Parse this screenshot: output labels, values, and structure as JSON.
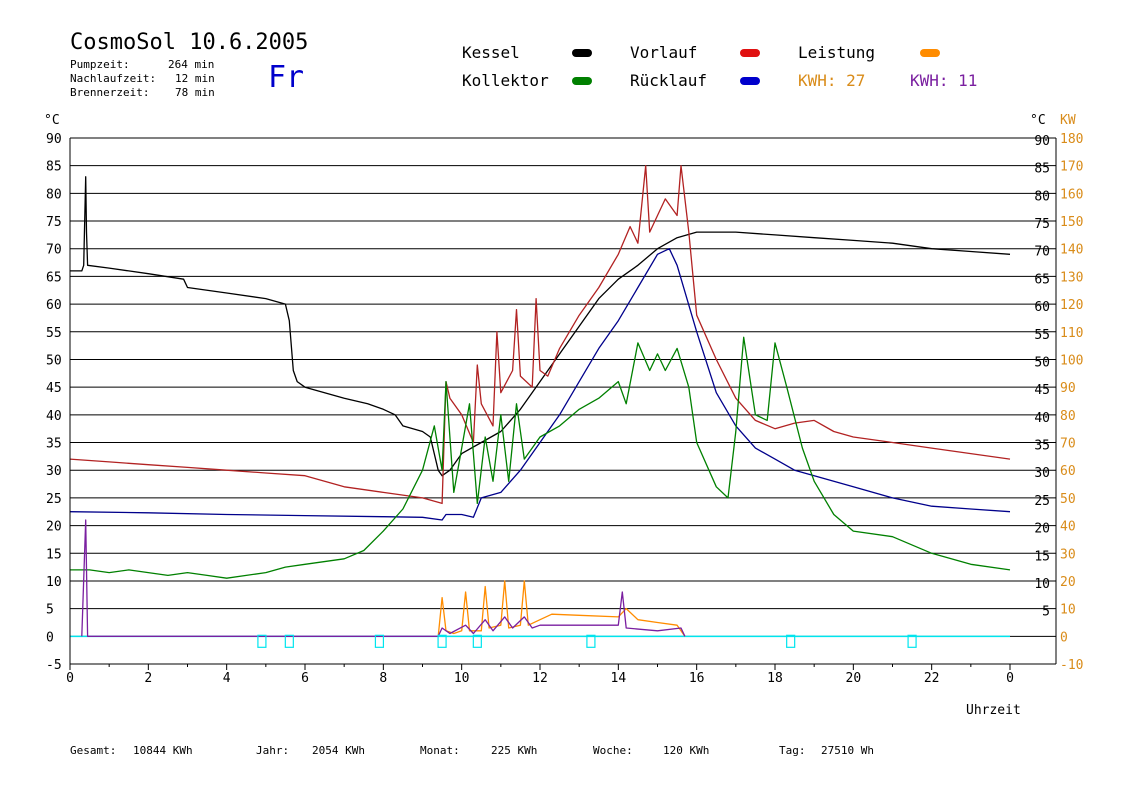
{
  "header": {
    "title": "CosmoSol 10.6.2005",
    "weekday": "Fr",
    "stats": [
      {
        "label": "Pumpzeit:",
        "value": "264 min"
      },
      {
        "label": "Nachlaufzeit:",
        "value": "12 min"
      },
      {
        "label": "Brennerzeit:",
        "value": "78 min"
      }
    ]
  },
  "legend": {
    "items": [
      {
        "label": "Kessel",
        "color": "#000000"
      },
      {
        "label": "Kollektor",
        "color": "#008000"
      },
      {
        "label": "Vorlauf",
        "color": "#e01010"
      },
      {
        "label": "Rücklauf",
        "color": "#0000cc"
      },
      {
        "label": "Leistung",
        "color": "#ff8c00"
      }
    ],
    "kwh": [
      {
        "text": "KWH: 27",
        "color": "#d98c1a"
      },
      {
        "text": "KWH: 11",
        "color": "#7a1fa0"
      }
    ]
  },
  "footer": [
    {
      "label": "Gesamt:",
      "value": "10844 KWh"
    },
    {
      "label": "Jahr:",
      "value": "2054 KWh"
    },
    {
      "label": "Monat:",
      "value": "225 KWh"
    },
    {
      "label": "Woche:",
      "value": "120 KWh"
    },
    {
      "label": "Tag:",
      "value": "27510 Wh"
    }
  ],
  "chart_data": {
    "type": "line",
    "xlabel": "Uhrzeit",
    "ylabel_left": "°C",
    "ylabel_right_temp": "°C",
    "ylabel_right_power": "KW",
    "xlim": [
      0,
      24
    ],
    "ylim": [
      -5,
      90
    ],
    "x_ticks": [
      0,
      2,
      4,
      6,
      8,
      10,
      12,
      14,
      16,
      18,
      20,
      22
    ],
    "x_tick_labels": [
      "0",
      "2",
      "4",
      "6",
      "8",
      "10",
      "12",
      "14",
      "16",
      "18",
      "20",
      "22",
      "0"
    ],
    "y_ticks_left": [
      "-5",
      "0",
      "5",
      "10",
      "15",
      "20",
      "25",
      "30",
      "35",
      "40",
      "45",
      "50",
      "55",
      "60",
      "65",
      "70",
      "75",
      "80",
      "85",
      "90"
    ],
    "y_ticks_right_temp": [
      "5",
      "10",
      "15",
      "20",
      "25",
      "30",
      "35",
      "40",
      "45",
      "50",
      "55",
      "60",
      "65",
      "70",
      "75",
      "80",
      "85",
      "90"
    ],
    "y_ticks_right_power": [
      "-10",
      "0",
      "10",
      "20",
      "30",
      "40",
      "50",
      "60",
      "70",
      "80",
      "90",
      "100",
      "110",
      "120",
      "130",
      "140",
      "150",
      "160",
      "170",
      "180"
    ],
    "grid": "horizontal",
    "series": [
      {
        "name": "Kessel",
        "color": "#000000",
        "points": [
          [
            0,
            66
          ],
          [
            0.3,
            66
          ],
          [
            0.35,
            67
          ],
          [
            0.4,
            83
          ],
          [
            0.42,
            73
          ],
          [
            0.45,
            67
          ],
          [
            1,
            66.5
          ],
          [
            2,
            65.5
          ],
          [
            2.9,
            64.5
          ],
          [
            3,
            63
          ],
          [
            4,
            62
          ],
          [
            5,
            61
          ],
          [
            5.5,
            60
          ],
          [
            5.6,
            57
          ],
          [
            5.7,
            48
          ],
          [
            5.8,
            46
          ],
          [
            6,
            45
          ],
          [
            7,
            43
          ],
          [
            7.6,
            42
          ],
          [
            8,
            41
          ],
          [
            8.3,
            40
          ],
          [
            8.5,
            38
          ],
          [
            9,
            37
          ],
          [
            9.2,
            36
          ],
          [
            9.4,
            30
          ],
          [
            9.5,
            29
          ],
          [
            9.7,
            30
          ],
          [
            10,
            33
          ],
          [
            10.5,
            35
          ],
          [
            11,
            37
          ],
          [
            11.5,
            41
          ],
          [
            12,
            46
          ],
          [
            12.5,
            51
          ],
          [
            13,
            56
          ],
          [
            13.5,
            61
          ],
          [
            14,
            64.5
          ],
          [
            14.5,
            67
          ],
          [
            15,
            70
          ],
          [
            15.5,
            72
          ],
          [
            16,
            73
          ],
          [
            17,
            73
          ],
          [
            18,
            72.5
          ],
          [
            19,
            72
          ],
          [
            20,
            71.5
          ],
          [
            21,
            71
          ],
          [
            22,
            70
          ],
          [
            23,
            69.5
          ],
          [
            24,
            69
          ]
        ]
      },
      {
        "name": "Vorlauf",
        "color": "#b22222",
        "points": [
          [
            0,
            32
          ],
          [
            1,
            31.5
          ],
          [
            2,
            31
          ],
          [
            3,
            30.5
          ],
          [
            4,
            30
          ],
          [
            5,
            29.5
          ],
          [
            6,
            29
          ],
          [
            7,
            27
          ],
          [
            8,
            26
          ],
          [
            9,
            25
          ],
          [
            9.5,
            24
          ],
          [
            9.6,
            46
          ],
          [
            9.7,
            43
          ],
          [
            10,
            40
          ],
          [
            10.3,
            35
          ],
          [
            10.4,
            49
          ],
          [
            10.5,
            42
          ],
          [
            10.8,
            38
          ],
          [
            10.9,
            55
          ],
          [
            11,
            44
          ],
          [
            11.3,
            48
          ],
          [
            11.4,
            59
          ],
          [
            11.5,
            47
          ],
          [
            11.8,
            45
          ],
          [
            11.9,
            61
          ],
          [
            12,
            48
          ],
          [
            12.2,
            47
          ],
          [
            12.5,
            52
          ],
          [
            13,
            58
          ],
          [
            13.5,
            63
          ],
          [
            14,
            69
          ],
          [
            14.3,
            74
          ],
          [
            14.5,
            71
          ],
          [
            14.7,
            85
          ],
          [
            14.8,
            73
          ],
          [
            15,
            76
          ],
          [
            15.2,
            79
          ],
          [
            15.5,
            76
          ],
          [
            15.6,
            85
          ],
          [
            15.8,
            73
          ],
          [
            16,
            58
          ],
          [
            16.5,
            50
          ],
          [
            17,
            43
          ],
          [
            17.5,
            39
          ],
          [
            18,
            37.5
          ],
          [
            18.5,
            38.5
          ],
          [
            19,
            39
          ],
          [
            19.5,
            37
          ],
          [
            20,
            36
          ],
          [
            21,
            35
          ],
          [
            22,
            34
          ],
          [
            23,
            33
          ],
          [
            24,
            32
          ]
        ]
      },
      {
        "name": "Rücklauf",
        "color": "#00008b",
        "points": [
          [
            0,
            22.5
          ],
          [
            2,
            22.3
          ],
          [
            4,
            22
          ],
          [
            6,
            21.8
          ],
          [
            8,
            21.6
          ],
          [
            9,
            21.5
          ],
          [
            9.5,
            21
          ],
          [
            9.6,
            22
          ],
          [
            10,
            22
          ],
          [
            10.3,
            21.5
          ],
          [
            10.5,
            25
          ],
          [
            11,
            26
          ],
          [
            11.5,
            30
          ],
          [
            12,
            35
          ],
          [
            12.5,
            40
          ],
          [
            13,
            46
          ],
          [
            13.5,
            52
          ],
          [
            14,
            57
          ],
          [
            14.5,
            63
          ],
          [
            15,
            69
          ],
          [
            15.3,
            70
          ],
          [
            15.5,
            67
          ],
          [
            16,
            55
          ],
          [
            16.5,
            44
          ],
          [
            17,
            38
          ],
          [
            17.5,
            34
          ],
          [
            18,
            32
          ],
          [
            18.5,
            30
          ],
          [
            19,
            29
          ],
          [
            20,
            27
          ],
          [
            21,
            25
          ],
          [
            22,
            23.5
          ],
          [
            23,
            23
          ],
          [
            24,
            22.5
          ]
        ]
      },
      {
        "name": "Kollektor",
        "color": "#008000",
        "points": [
          [
            0,
            12
          ],
          [
            0.5,
            12
          ],
          [
            1,
            11.5
          ],
          [
            1.5,
            12
          ],
          [
            2,
            11.5
          ],
          [
            2.5,
            11
          ],
          [
            3,
            11.5
          ],
          [
            3.5,
            11
          ],
          [
            4,
            10.5
          ],
          [
            4.5,
            11
          ],
          [
            5,
            11.5
          ],
          [
            5.5,
            12.5
          ],
          [
            6,
            13
          ],
          [
            7,
            14
          ],
          [
            7.5,
            15.5
          ],
          [
            8,
            19
          ],
          [
            8.5,
            23
          ],
          [
            9,
            30
          ],
          [
            9.3,
            38
          ],
          [
            9.5,
            30
          ],
          [
            9.6,
            46
          ],
          [
            9.8,
            26
          ],
          [
            10,
            34
          ],
          [
            10.2,
            42
          ],
          [
            10.4,
            24
          ],
          [
            10.6,
            36
          ],
          [
            10.8,
            28
          ],
          [
            11,
            40
          ],
          [
            11.2,
            28
          ],
          [
            11.4,
            42
          ],
          [
            11.6,
            32
          ],
          [
            12,
            36
          ],
          [
            12.5,
            38
          ],
          [
            13,
            41
          ],
          [
            13.5,
            43
          ],
          [
            14,
            46
          ],
          [
            14.2,
            42
          ],
          [
            14.5,
            53
          ],
          [
            14.8,
            48
          ],
          [
            15,
            51
          ],
          [
            15.2,
            48
          ],
          [
            15.5,
            52
          ],
          [
            15.8,
            45
          ],
          [
            16,
            35
          ],
          [
            16.5,
            27
          ],
          [
            16.8,
            25
          ],
          [
            17,
            37
          ],
          [
            17.2,
            54
          ],
          [
            17.5,
            40
          ],
          [
            17.8,
            39
          ],
          [
            18,
            53
          ],
          [
            18.3,
            45
          ],
          [
            18.7,
            34
          ],
          [
            19,
            28
          ],
          [
            19.5,
            22
          ],
          [
            20,
            19
          ],
          [
            21,
            18
          ],
          [
            22,
            15
          ],
          [
            23,
            13
          ],
          [
            24,
            12
          ]
        ]
      },
      {
        "name": "Leistung",
        "color": "#ff8c00",
        "points": [
          [
            9.4,
            0
          ],
          [
            9.5,
            7
          ],
          [
            9.6,
            1
          ],
          [
            9.8,
            0.5
          ],
          [
            10,
            1
          ],
          [
            10.1,
            8
          ],
          [
            10.2,
            1
          ],
          [
            10.5,
            1
          ],
          [
            10.6,
            9
          ],
          [
            10.7,
            1.5
          ],
          [
            11,
            2
          ],
          [
            11.1,
            10
          ],
          [
            11.2,
            1.5
          ],
          [
            11.5,
            2
          ],
          [
            11.6,
            10
          ],
          [
            11.7,
            2
          ],
          [
            12,
            3
          ],
          [
            12.3,
            4
          ],
          [
            13,
            3.8
          ],
          [
            14,
            3.5
          ],
          [
            14.2,
            5
          ],
          [
            14.5,
            3
          ],
          [
            15,
            2.5
          ],
          [
            15.5,
            2
          ],
          [
            15.7,
            0
          ]
        ]
      },
      {
        "name": "KWH",
        "color": "#7a1fa0",
        "points": [
          [
            0.3,
            0
          ],
          [
            0.4,
            21
          ],
          [
            0.45,
            0
          ],
          [
            9.4,
            0
          ],
          [
            9.5,
            1.5
          ],
          [
            9.7,
            0.5
          ],
          [
            10.1,
            2
          ],
          [
            10.3,
            0.5
          ],
          [
            10.6,
            3
          ],
          [
            10.8,
            1
          ],
          [
            11.1,
            3.5
          ],
          [
            11.3,
            1.5
          ],
          [
            11.6,
            3.5
          ],
          [
            11.8,
            1.5
          ],
          [
            12,
            2
          ],
          [
            13,
            2
          ],
          [
            14,
            2
          ],
          [
            14.1,
            8
          ],
          [
            14.2,
            1.5
          ],
          [
            15,
            1
          ],
          [
            15.6,
            1.5
          ],
          [
            15.7,
            0
          ]
        ]
      }
    ],
    "pump_markers": [
      4.9,
      5.6,
      7.9,
      9.5,
      10.4,
      13.3,
      18.4,
      21.5
    ],
    "baseline_color": "#00e5ee"
  }
}
